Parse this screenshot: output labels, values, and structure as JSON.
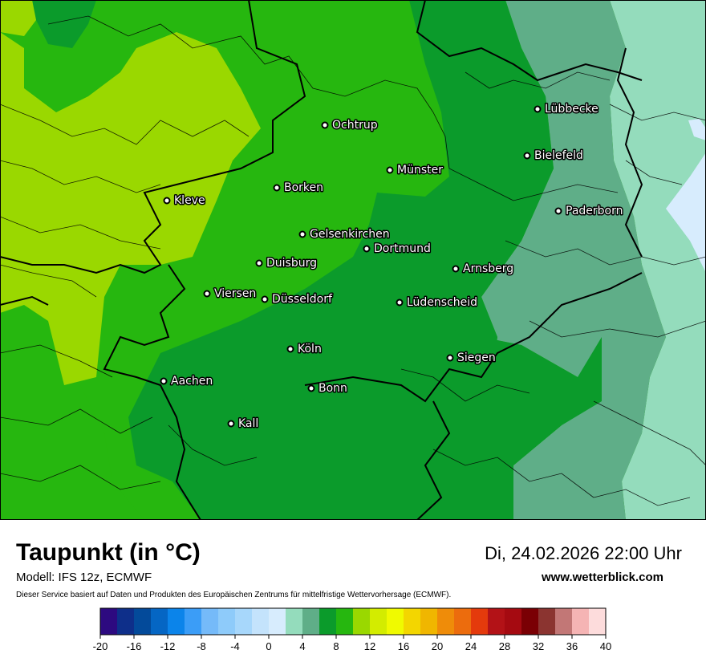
{
  "header": {
    "title": "Taupunkt (in °C)",
    "datetime": "Di, 24.02.2026 22:00 Uhr",
    "model": "Modell: IFS 12z, ECMWF",
    "website": "www.wetterblick.com",
    "disclaimer": "Dieser Service basiert auf Daten und Produkten des Europäischen Zentrums für mittelfristige Wettervorhersage (ECMWF)."
  },
  "cities": [
    {
      "name": "Ochtrup"
    },
    {
      "name": "Lübbecke"
    },
    {
      "name": "Bielefeld"
    },
    {
      "name": "Münster"
    },
    {
      "name": "Borken"
    },
    {
      "name": "Kleve"
    },
    {
      "name": "Paderborn"
    },
    {
      "name": "Gelsenkirchen"
    },
    {
      "name": "Dortmund"
    },
    {
      "name": "Duisburg"
    },
    {
      "name": "Arnsberg"
    },
    {
      "name": "Viersen"
    },
    {
      "name": "Düsseldorf"
    },
    {
      "name": "Lüdenscheid"
    },
    {
      "name": "Köln"
    },
    {
      "name": "Siegen"
    },
    {
      "name": "Aachen"
    },
    {
      "name": "Bonn"
    },
    {
      "name": "Kall"
    }
  ],
  "legend": {
    "colors": [
      "#2d0a80",
      "#0e2f8a",
      "#034a9a",
      "#0566c4",
      "#0b84ea",
      "#3b9df7",
      "#75baf9",
      "#8ecbfa",
      "#a7d7fb",
      "#c4e3fc",
      "#d7ecfd",
      "#94dcbc",
      "#5fae88",
      "#0b9b2b",
      "#26b70f",
      "#9ad800",
      "#d3ec00",
      "#f0fa00",
      "#f3d600",
      "#f0b600",
      "#ef8c09",
      "#ec6c0d",
      "#e43a0c",
      "#b31217",
      "#a50a11",
      "#7a0004",
      "#8b3430",
      "#c27776",
      "#f5b4b4",
      "#fddcdc"
    ],
    "tick_labels": [
      "-20",
      "-16",
      "-12",
      "-8",
      "-4",
      "0",
      "4",
      "8",
      "12",
      "16",
      "20",
      "24",
      "28",
      "32",
      "36",
      "40"
    ]
  },
  "map_colors": {
    "lightgreen_8_10": "#9ad800",
    "green_6_8": "#26b70f",
    "darkgreen_4_6": "#0b9b2b",
    "teal_2_4": "#5fae88",
    "mint_0_2": "#94dcbc",
    "lightblue_m2_0": "#d7ecfd"
  }
}
